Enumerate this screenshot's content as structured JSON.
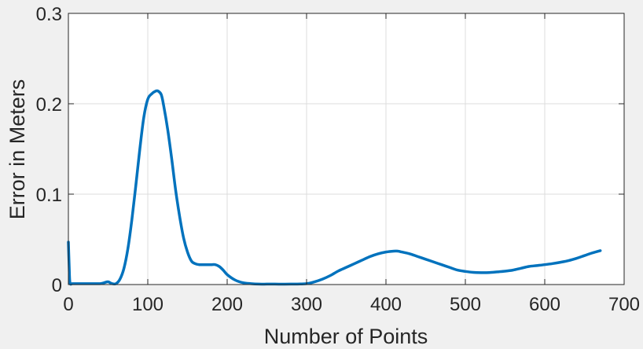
{
  "chart_data": {
    "type": "line",
    "title": "",
    "xlabel": "Number of Points",
    "ylabel": "Error in Meters",
    "xlim": [
      0,
      700
    ],
    "ylim": [
      0,
      0.3
    ],
    "xticks": [
      0,
      100,
      200,
      300,
      400,
      500,
      600,
      700
    ],
    "yticks": [
      0,
      0.1,
      0.2,
      0.3
    ],
    "xtick_labels": [
      "0",
      "100",
      "200",
      "300",
      "400",
      "500",
      "600",
      "700"
    ],
    "ytick_labels": [
      "0",
      "0.1",
      "0.2",
      "0.3"
    ],
    "grid": true,
    "legend": "none",
    "colors": {
      "line": "#0072BD",
      "axes": "#262626",
      "grid": "#dcdcdc",
      "figure_background": "#f0f0f0",
      "plot_background": "#ffffff"
    },
    "series": [
      {
        "x": [
          0,
          1,
          2,
          5,
          10,
          20,
          30,
          40,
          45,
          50,
          55,
          60,
          65,
          70,
          75,
          80,
          85,
          90,
          95,
          100,
          105,
          110,
          113,
          117,
          120,
          125,
          130,
          135,
          140,
          145,
          150,
          155,
          160,
          165,
          170,
          175,
          180,
          185,
          190,
          195,
          200,
          210,
          220,
          230,
          240,
          250,
          260,
          280,
          300,
          310,
          320,
          330,
          340,
          350,
          360,
          370,
          380,
          390,
          400,
          410,
          415,
          420,
          430,
          440,
          450,
          460,
          470,
          480,
          490,
          500,
          510,
          520,
          530,
          540,
          550,
          560,
          570,
          580,
          590,
          600,
          610,
          620,
          630,
          640,
          650,
          660,
          670
        ],
        "values": [
          0.047,
          0.02,
          0.002,
          0.001,
          0.001,
          0.001,
          0.001,
          0.001,
          0.002,
          0.003,
          0.001,
          0.001,
          0.006,
          0.018,
          0.04,
          0.072,
          0.11,
          0.15,
          0.185,
          0.205,
          0.211,
          0.214,
          0.214,
          0.21,
          0.198,
          0.172,
          0.14,
          0.105,
          0.076,
          0.052,
          0.036,
          0.026,
          0.023,
          0.022,
          0.022,
          0.022,
          0.022,
          0.022,
          0.02,
          0.016,
          0.011,
          0.005,
          0.002,
          0.001,
          0.0005,
          0.0005,
          0.0005,
          0.0005,
          0.001,
          0.003,
          0.006,
          0.01,
          0.015,
          0.019,
          0.023,
          0.027,
          0.031,
          0.034,
          0.036,
          0.037,
          0.037,
          0.036,
          0.034,
          0.031,
          0.028,
          0.025,
          0.022,
          0.019,
          0.016,
          0.0145,
          0.0135,
          0.0132,
          0.0133,
          0.014,
          0.0148,
          0.016,
          0.018,
          0.02,
          0.021,
          0.022,
          0.0232,
          0.0247,
          0.0265,
          0.029,
          0.032,
          0.035,
          0.0375
        ]
      }
    ]
  }
}
